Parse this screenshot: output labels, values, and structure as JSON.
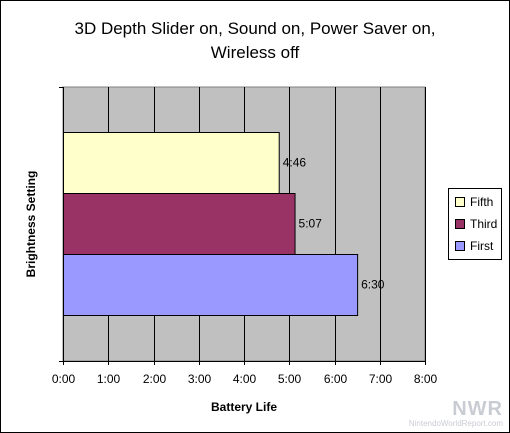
{
  "chart_data": {
    "type": "bar",
    "orientation": "horizontal",
    "title_lines": [
      "3D Depth Slider on, Sound on, Power Saver on,",
      "Wireless off"
    ],
    "xlabel": "Battery Life",
    "ylabel": "Brightness Setting",
    "x_unit": "hours",
    "xlim": [
      0,
      8
    ],
    "x_tick_labels": [
      "0:00",
      "1:00",
      "2:00",
      "3:00",
      "4:00",
      "5:00",
      "6:00",
      "7:00",
      "8:00"
    ],
    "grid": true,
    "plot_background": "#c0c0c0",
    "legend_position": "right",
    "categories": [
      "Fifth",
      "Third",
      "First"
    ],
    "values": [
      4.767,
      5.117,
      6.5
    ],
    "data_labels": [
      "4:46",
      "5:07",
      "6:30"
    ],
    "colors": [
      "#ffffcc",
      "#993366",
      "#9999ff"
    ],
    "legend": [
      "Fifth",
      "Third",
      "First"
    ]
  },
  "watermark": {
    "brand": "NWR",
    "site": "NintendoWorldReport.com"
  }
}
